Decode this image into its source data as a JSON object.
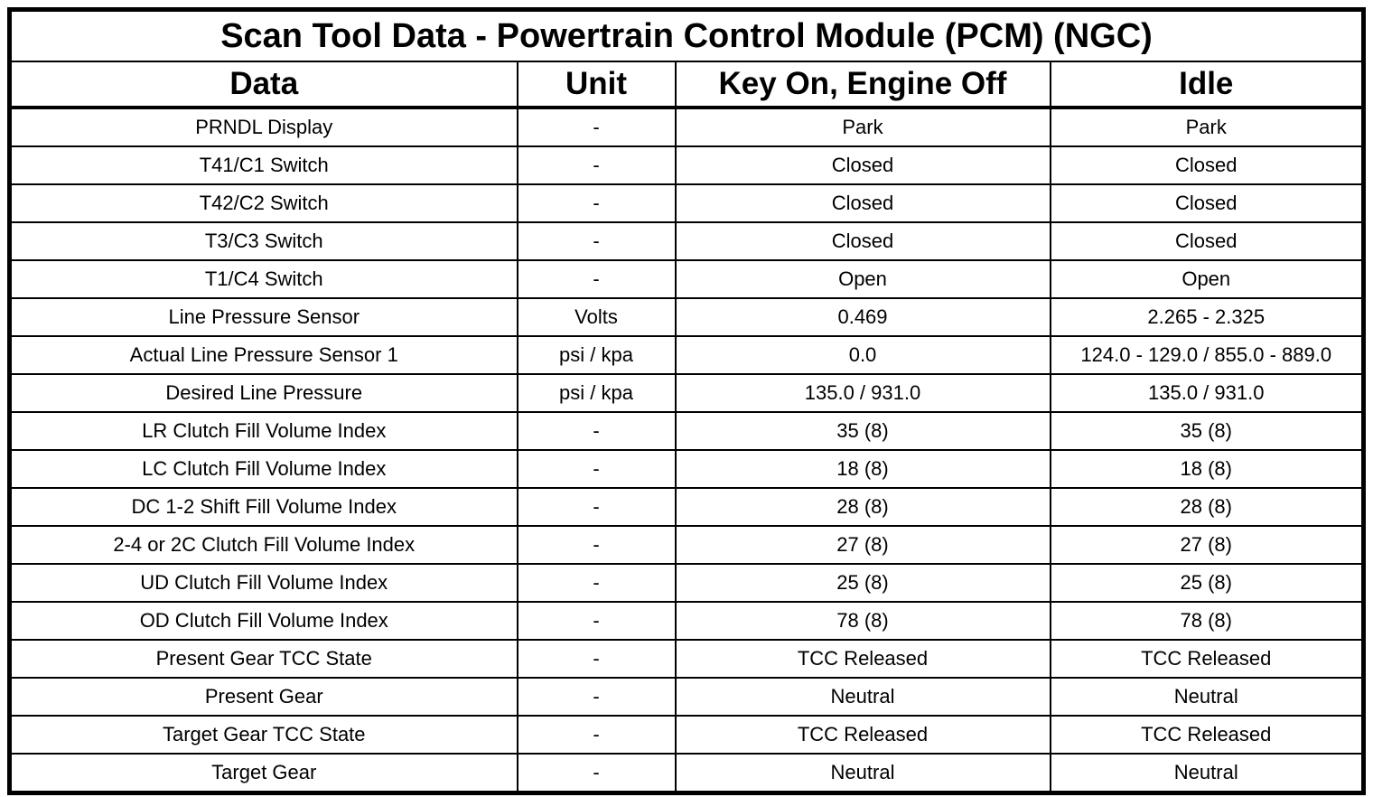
{
  "table": {
    "title": "Scan Tool Data - Powertrain Control Module (PCM) (NGC)",
    "columns": [
      "Data",
      "Unit",
      "Key On, Engine Off",
      "Idle"
    ],
    "rows": [
      [
        "PRNDL Display",
        "-",
        "Park",
        "Park"
      ],
      [
        "T41/C1 Switch",
        "-",
        "Closed",
        "Closed"
      ],
      [
        "T42/C2 Switch",
        "-",
        "Closed",
        "Closed"
      ],
      [
        "T3/C3 Switch",
        "-",
        "Closed",
        "Closed"
      ],
      [
        "T1/C4 Switch",
        "-",
        "Open",
        "Open"
      ],
      [
        "Line Pressure Sensor",
        "Volts",
        "0.469",
        "2.265 - 2.325"
      ],
      [
        "Actual Line Pressure Sensor 1",
        "psi / kpa",
        "0.0",
        "124.0 - 129.0 / 855.0 - 889.0"
      ],
      [
        "Desired Line Pressure",
        "psi / kpa",
        "135.0 / 931.0",
        "135.0 / 931.0"
      ],
      [
        "LR Clutch Fill Volume Index",
        "-",
        "35 (8)",
        "35 (8)"
      ],
      [
        "LC Clutch Fill Volume Index",
        "-",
        "18 (8)",
        "18 (8)"
      ],
      [
        "DC 1-2 Shift Fill Volume Index",
        "-",
        "28 (8)",
        "28 (8)"
      ],
      [
        "2-4 or 2C Clutch Fill Volume Index",
        "-",
        "27 (8)",
        "27 (8)"
      ],
      [
        "UD Clutch Fill Volume Index",
        "-",
        "25 (8)",
        "25 (8)"
      ],
      [
        "OD Clutch Fill Volume Index",
        "-",
        "78 (8)",
        "78 (8)"
      ],
      [
        "Present Gear TCC State",
        "-",
        "TCC Released",
        "TCC Released"
      ],
      [
        "Present Gear",
        "-",
        "Neutral",
        "Neutral"
      ],
      [
        "Target Gear TCC State",
        "-",
        "TCC Released",
        "TCC Released"
      ],
      [
        "Target Gear",
        "-",
        "Neutral",
        "Neutral"
      ]
    ],
    "colors": {
      "border": "#000000",
      "text": "#000000",
      "background": "#ffffff"
    }
  }
}
